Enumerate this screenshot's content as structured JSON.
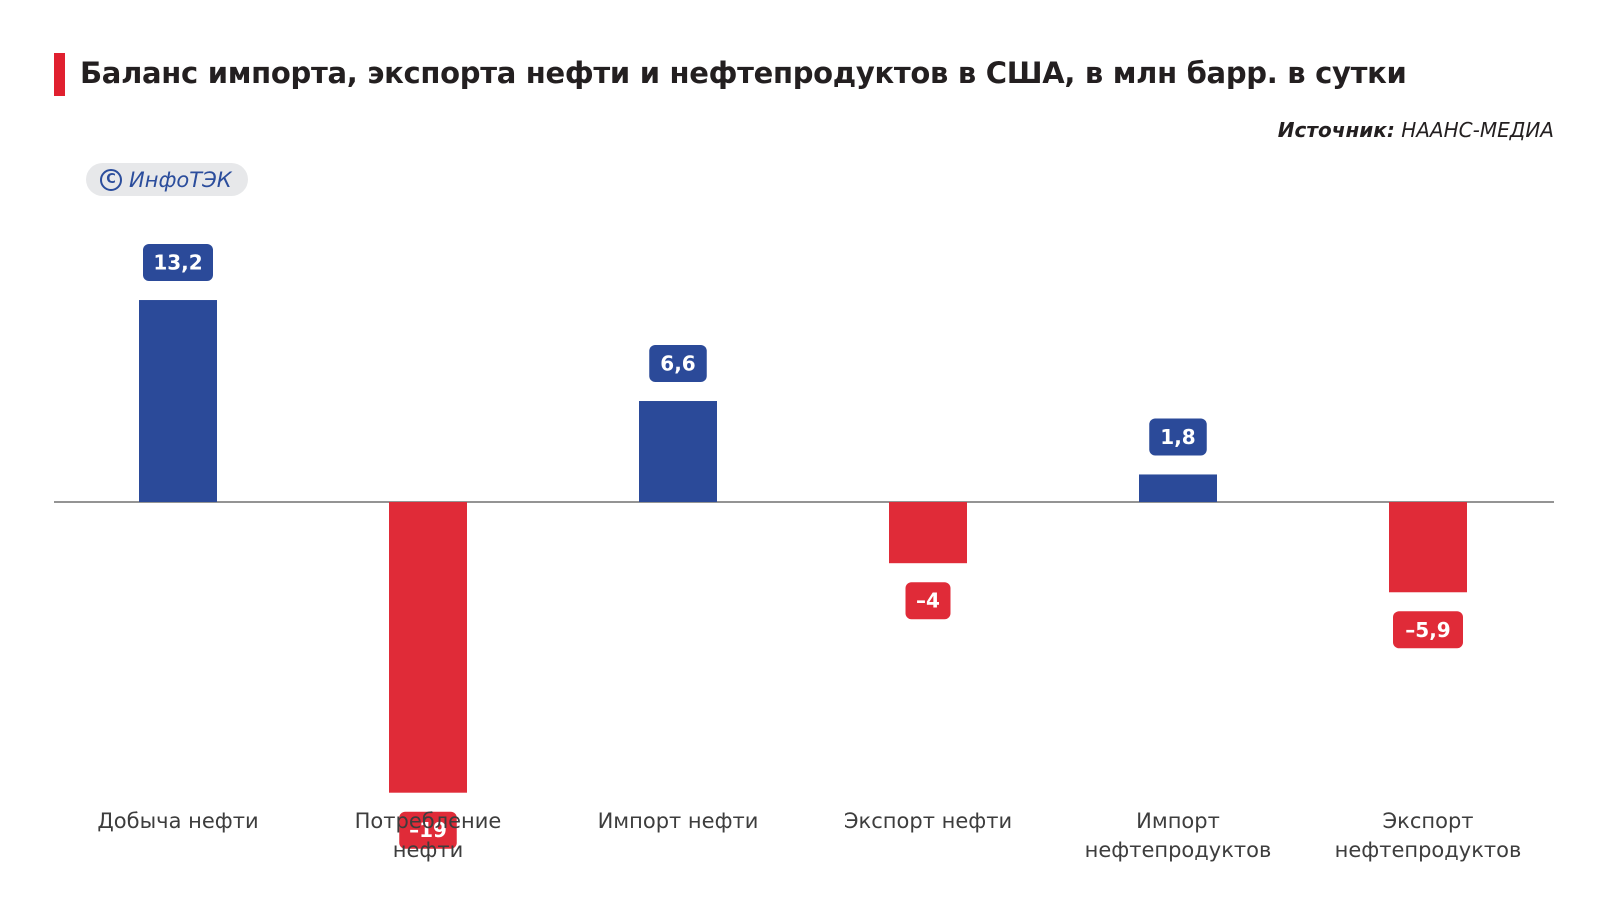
{
  "header": {
    "title": "Баланс импорта, экспорта нефти и нефтепродуктов в США, в млн барр. в сутки",
    "source_label": "Источник:",
    "source_value": "НААНС-МЕДИА"
  },
  "watermark": {
    "text": "ИнфоТЭК",
    "icon": "copyright-icon"
  },
  "colors": {
    "positive": "#2b4a99",
    "negative": "#e02b38",
    "accent": "#e0202f",
    "axis": "#555555"
  },
  "chart_data": {
    "type": "bar",
    "title": "Баланс импорта, экспорта нефти и нефтепродуктов в США, в млн барр. в сутки",
    "xlabel": "",
    "ylabel": "",
    "ylim": [
      -19,
      13.2
    ],
    "grid": false,
    "categories": [
      [
        "Добыча нефти"
      ],
      [
        "Потребление",
        "нефти"
      ],
      [
        "Импорт нефти"
      ],
      [
        "Экспорт нефти"
      ],
      [
        "Импорт",
        "нефтепродуктов"
      ],
      [
        "Экспорт",
        "нефтепродуктов"
      ]
    ],
    "values": [
      13.2,
      -19,
      6.6,
      -4,
      1.8,
      -5.9
    ],
    "value_labels": [
      "13,2",
      "–19",
      "6,6",
      "–4",
      "1,8",
      "–5,9"
    ]
  }
}
